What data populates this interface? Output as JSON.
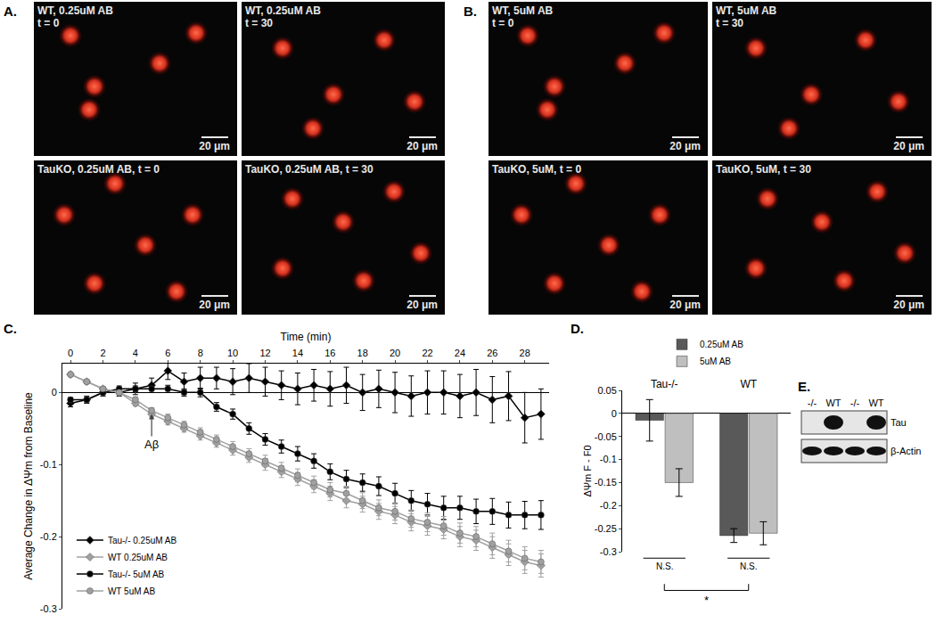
{
  "figure": {
    "panel_labels": [
      "A.",
      "B.",
      "C.",
      "D.",
      "E."
    ],
    "images": {
      "A": [
        {
          "lines": [
            "WT, 0.25uM AB",
            "t = 0"
          ],
          "scale": "20 μm"
        },
        {
          "lines": [
            "WT, 0.25uM AB",
            "t = 30"
          ],
          "scale": "20 μm"
        },
        {
          "lines": [
            "TauKO, 0.25uM AB, t = 0"
          ],
          "scale": "20 μm"
        },
        {
          "lines": [
            "TauKO, 0.25uM AB, t = 30"
          ],
          "scale": "20 μm"
        }
      ],
      "B": [
        {
          "lines": [
            "WT, 5uM AB",
            "t = 0"
          ],
          "scale": "20 μm"
        },
        {
          "lines": [
            "WT, 5uM AB",
            "t = 30"
          ],
          "scale": "20 μm"
        },
        {
          "lines": [
            "TauKO, 5uM, t = 0"
          ],
          "scale": "20 μm"
        },
        {
          "lines": [
            "TauKO, 5uM, t = 30"
          ],
          "scale": "20 μm"
        }
      ]
    },
    "blot": {
      "lanes": [
        "-/-",
        "WT",
        "-/-",
        "WT"
      ],
      "rows": [
        {
          "label": "Tau",
          "present": [
            false,
            true,
            false,
            true
          ]
        },
        {
          "label": "β-Actin",
          "present": [
            true,
            true,
            true,
            true
          ]
        }
      ]
    }
  },
  "chart_data": [
    {
      "type": "line",
      "x": [
        0,
        1,
        2,
        3,
        4,
        5,
        6,
        7,
        8,
        9,
        10,
        11,
        12,
        13,
        14,
        15,
        16,
        17,
        18,
        19,
        20,
        21,
        22,
        23,
        24,
        25,
        26,
        27,
        28,
        29
      ],
      "x_title": "Time (min)",
      "y_title": "Average Change in ΔΨm from Baseline",
      "xlim": [
        -0.5,
        29.5
      ],
      "xticks": [
        0,
        2,
        4,
        6,
        8,
        10,
        12,
        14,
        16,
        18,
        20,
        22,
        24,
        26,
        28
      ],
      "ylim": [
        -0.3,
        0.04
      ],
      "yticks": [
        -0.3,
        -0.2,
        -0.1,
        0
      ],
      "grid": false,
      "legend": "lower left",
      "annotations": [
        {
          "text": "Aβ",
          "x": 5,
          "y": -0.03
        }
      ],
      "series": [
        {
          "name": "Tau-/- 0.25uM AB",
          "color": "#000000",
          "marker": "diamond",
          "line_style": "solid",
          "values": [
            -0.015,
            -0.01,
            0,
            0,
            0.005,
            0.01,
            0.03,
            0.015,
            0.02,
            0.02,
            0.015,
            0.02,
            0.015,
            0.01,
            0.005,
            0.01,
            0.005,
            0.01,
            0,
            0.005,
            0,
            -0.005,
            0,
            0,
            -0.005,
            0,
            -0.01,
            -0.005,
            -0.035,
            -0.03
          ],
          "errors": [
            0.005,
            0.005,
            0.005,
            0.005,
            0.008,
            0.01,
            0.012,
            0.012,
            0.015,
            0.015,
            0.018,
            0.02,
            0.02,
            0.02,
            0.022,
            0.022,
            0.024,
            0.025,
            0.025,
            0.026,
            0.028,
            0.028,
            0.03,
            0.03,
            0.03,
            0.032,
            0.032,
            0.034,
            0.035,
            0.035
          ]
        },
        {
          "name": "WT 0.25uM AB",
          "color": "#a0a0a0",
          "marker": "diamond",
          "line_style": "solid",
          "values": [
            0.025,
            0.015,
            0.005,
            0,
            -0.015,
            -0.03,
            -0.04,
            -0.05,
            -0.06,
            -0.07,
            -0.08,
            -0.09,
            -0.1,
            -0.11,
            -0.12,
            -0.13,
            -0.14,
            -0.15,
            -0.155,
            -0.165,
            -0.17,
            -0.18,
            -0.185,
            -0.19,
            -0.2,
            -0.205,
            -0.215,
            -0.225,
            -0.235,
            -0.24
          ],
          "errors": [
            0.003,
            0.003,
            0.003,
            0.003,
            0.004,
            0.004,
            0.005,
            0.005,
            0.006,
            0.006,
            0.007,
            0.007,
            0.008,
            0.008,
            0.009,
            0.009,
            0.01,
            0.01,
            0.011,
            0.011,
            0.012,
            0.012,
            0.013,
            0.013,
            0.014,
            0.014,
            0.015,
            0.015,
            0.016,
            0.016
          ]
        },
        {
          "name": "Tau-/- 5uM AB",
          "color": "#000000",
          "marker": "circle",
          "line_style": "solid",
          "values": [
            -0.01,
            -0.01,
            0,
            0.005,
            0.005,
            0.005,
            0.005,
            0,
            0,
            -0.02,
            -0.03,
            -0.05,
            -0.065,
            -0.075,
            -0.085,
            -0.095,
            -0.11,
            -0.12,
            -0.125,
            -0.13,
            -0.14,
            -0.15,
            -0.155,
            -0.16,
            -0.16,
            -0.165,
            -0.165,
            -0.17,
            -0.17,
            -0.17
          ],
          "errors": [
            0.003,
            0.003,
            0.003,
            0.004,
            0.004,
            0.005,
            0.005,
            0.005,
            0.006,
            0.006,
            0.007,
            0.008,
            0.008,
            0.009,
            0.01,
            0.01,
            0.011,
            0.012,
            0.012,
            0.013,
            0.014,
            0.014,
            0.015,
            0.016,
            0.016,
            0.017,
            0.018,
            0.018,
            0.019,
            0.02
          ]
        },
        {
          "name": "WT 5uM AB",
          "color": "#a0a0a0",
          "marker": "circle",
          "line_style": "solid",
          "values": [
            0.025,
            0.015,
            0.005,
            0,
            -0.01,
            -0.025,
            -0.035,
            -0.045,
            -0.055,
            -0.065,
            -0.075,
            -0.085,
            -0.095,
            -0.105,
            -0.115,
            -0.125,
            -0.135,
            -0.14,
            -0.15,
            -0.16,
            -0.165,
            -0.175,
            -0.18,
            -0.185,
            -0.195,
            -0.2,
            -0.21,
            -0.22,
            -0.23,
            -0.235
          ],
          "errors": [
            0.003,
            0.003,
            0.003,
            0.003,
            0.004,
            0.004,
            0.005,
            0.005,
            0.006,
            0.006,
            0.007,
            0.007,
            0.008,
            0.008,
            0.009,
            0.009,
            0.01,
            0.01,
            0.011,
            0.011,
            0.012,
            0.012,
            0.013,
            0.013,
            0.014,
            0.014,
            0.015,
            0.015,
            0.016,
            0.016
          ]
        }
      ]
    },
    {
      "type": "bar",
      "categories": [
        "Tau-/-",
        "WT"
      ],
      "y_title": "ΔΨm F - F0",
      "ylim": [
        -0.3,
        0.05
      ],
      "yticks": [
        0.05,
        0,
        -0.05,
        -0.1,
        -0.15,
        -0.2,
        -0.25,
        -0.3
      ],
      "grid": false,
      "legend": "top",
      "series": [
        {
          "name": "0.25uM AB",
          "color": "#595959",
          "values": [
            -0.015,
            -0.265
          ],
          "errors": [
            0.045,
            0.015
          ]
        },
        {
          "name": "5uM AB",
          "color": "#bfbfbf",
          "values": [
            -0.15,
            -0.26
          ],
          "errors": [
            0.03,
            0.025
          ]
        }
      ],
      "annotations": [
        {
          "text": "N.S.",
          "category": "Tau-/-"
        },
        {
          "text": "N.S.",
          "category": "WT"
        },
        {
          "text": "*"
        }
      ]
    }
  ]
}
